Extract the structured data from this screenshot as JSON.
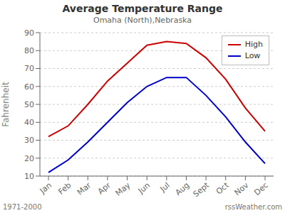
{
  "chart_data": {
    "type": "line",
    "title": "Average Temperature Range",
    "subtitle": "Omaha (North),Nebraska",
    "ylabel": "Fahrenheit",
    "categories": [
      "Jan",
      "Feb",
      "Mar",
      "Apr",
      "May",
      "Jun",
      "Jul",
      "Aug",
      "Sept",
      "Oct",
      "Nov",
      "Dec"
    ],
    "series": [
      {
        "name": "High",
        "color": "#cc0000",
        "values": [
          32,
          38,
          50,
          63,
          73,
          83,
          85,
          84,
          76,
          64,
          48,
          35
        ]
      },
      {
        "name": "Low",
        "color": "#0000cc",
        "values": [
          12,
          19,
          29,
          40,
          51,
          60,
          65,
          65,
          55,
          43,
          29,
          17
        ]
      }
    ],
    "ylim": [
      10,
      90
    ],
    "yticks": [
      10,
      20,
      30,
      40,
      50,
      60,
      70,
      80,
      90
    ],
    "grid": true,
    "legend": "upper right",
    "annotations": [
      "1971-2000",
      "rssWeather.com"
    ]
  }
}
